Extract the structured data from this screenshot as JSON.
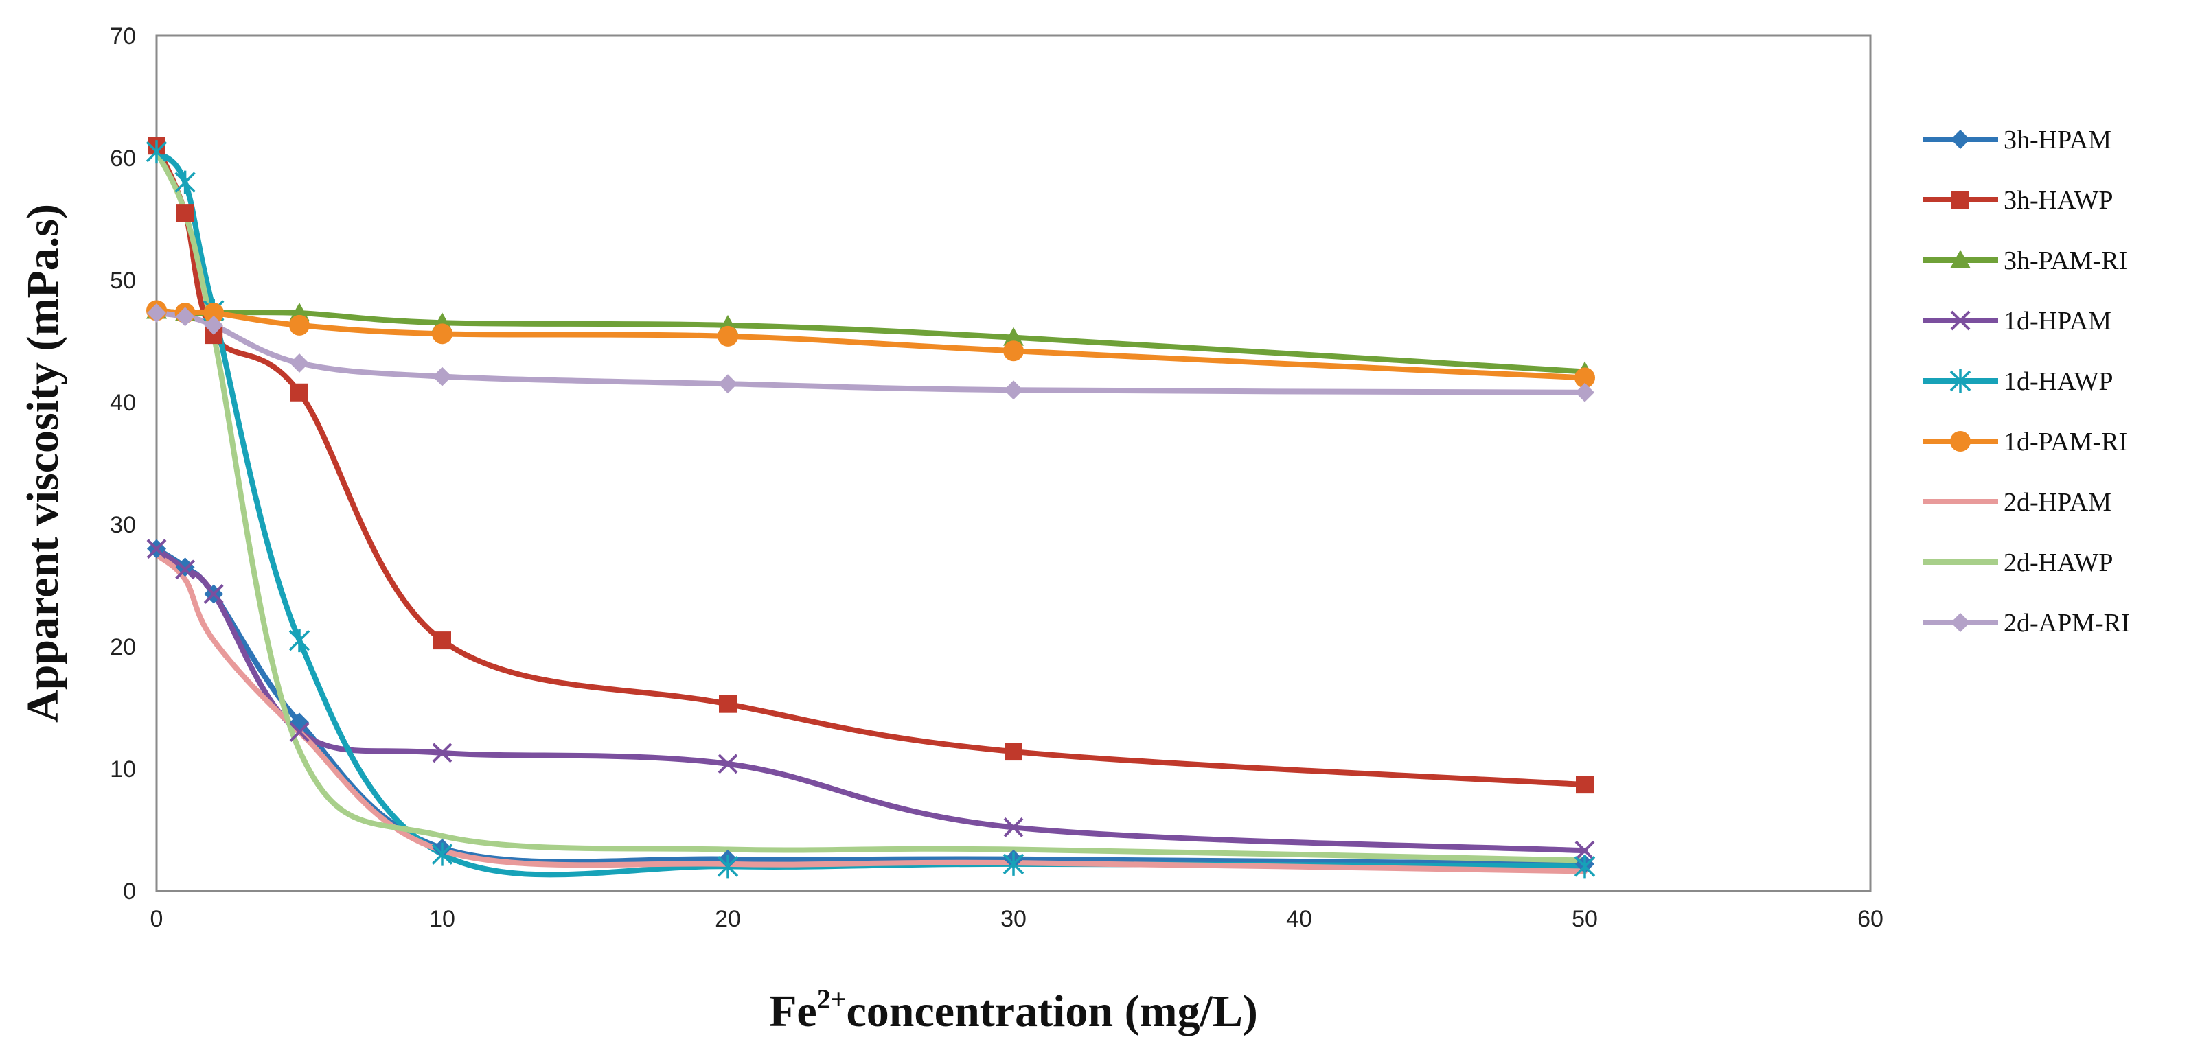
{
  "chart_data": {
    "type": "line",
    "title": "",
    "xlabel_main": "Fe",
    "xlabel_sup": "2+",
    "xlabel_rest": "concentration (mg/L)",
    "ylabel": "Apparent viscosity (mPa.s)",
    "xlim": [
      0,
      60
    ],
    "ylim": [
      0,
      70
    ],
    "xticks": [
      0,
      10,
      20,
      30,
      40,
      50,
      60
    ],
    "yticks": [
      0,
      10,
      20,
      30,
      40,
      50,
      60,
      70
    ],
    "grid": false,
    "legend_position": "right",
    "x": [
      0,
      1,
      2,
      5,
      10,
      20,
      30,
      50
    ],
    "series": [
      {
        "name": "3h-HPAM",
        "color": "#2E75B6",
        "marker": "diamond",
        "values": [
          28,
          26.5,
          24.3,
          13.8,
          3.5,
          2.6,
          2.6,
          2.2
        ]
      },
      {
        "name": "3h-HAWP",
        "color": "#C0392B",
        "marker": "square",
        "values": [
          61,
          55.5,
          45.5,
          40.8,
          20.5,
          15.3,
          11.4,
          8.7
        ]
      },
      {
        "name": "3h-PAM-RI",
        "color": "#6FA138",
        "marker": "triangle",
        "values": [
          47.5,
          47.3,
          47.3,
          47.3,
          46.5,
          46.3,
          45.3,
          42.5
        ]
      },
      {
        "name": "1d-HPAM",
        "color": "#7B4F9E",
        "marker": "x",
        "values": [
          28,
          26.3,
          24.3,
          13.0,
          11.3,
          10.4,
          5.2,
          3.3
        ]
      },
      {
        "name": "1d-HAWP",
        "color": "#17A2B8",
        "marker": "star",
        "values": [
          60.5,
          58,
          47.5,
          20.5,
          3.0,
          2.0,
          2.2,
          2.0
        ]
      },
      {
        "name": "1d-PAM-RI",
        "color": "#F08A24",
        "marker": "circle",
        "values": [
          47.5,
          47.3,
          47.3,
          46.3,
          45.6,
          45.4,
          44.2,
          42.0
        ]
      },
      {
        "name": "2d-HPAM",
        "color": "#E89A9A",
        "marker": "none",
        "values": [
          27.5,
          25.5,
          20.5,
          13.0,
          3.3,
          2.2,
          2.3,
          1.6
        ]
      },
      {
        "name": "2d-HAWP",
        "color": "#A8CF8A",
        "marker": "none",
        "values": [
          60.5,
          55.5,
          45.5,
          11.5,
          4.5,
          3.4,
          3.4,
          2.5
        ]
      },
      {
        "name": "2d-APM-RI",
        "color": "#B4A2C8",
        "marker": "diamond",
        "values": [
          47.3,
          47.0,
          46.3,
          43.2,
          42.1,
          41.5,
          41.0,
          40.8
        ]
      }
    ]
  }
}
